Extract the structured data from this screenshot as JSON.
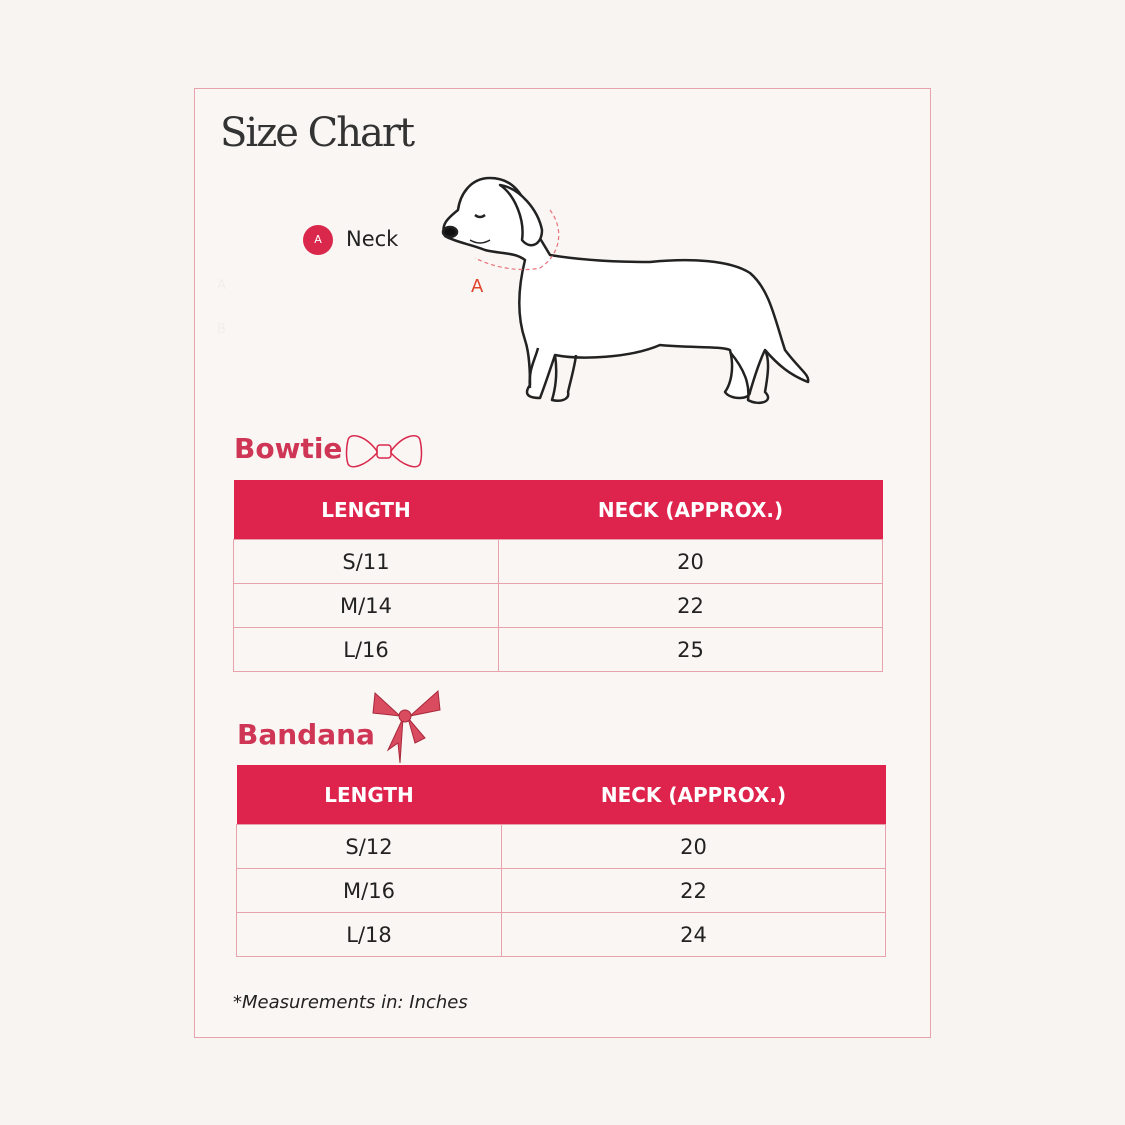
{
  "header": {
    "title": "Size Chart"
  },
  "legend": {
    "badge": "A",
    "label": "Neck"
  },
  "figure": {
    "marker": "A",
    "faint_labels": [
      "A",
      "B"
    ]
  },
  "sections": [
    {
      "title": "Bowtie",
      "table": {
        "columns": [
          "LENGTH",
          "NECK (APPROX.)"
        ],
        "rows": [
          [
            "S/11",
            20
          ],
          [
            "M/14",
            22
          ],
          [
            "L/16",
            25
          ]
        ]
      }
    },
    {
      "title": "Bandana",
      "table": {
        "columns": [
          "LENGTH",
          "NECK (APPROX.)"
        ],
        "rows": [
          [
            "S/12",
            20
          ],
          [
            "M/16",
            22
          ],
          [
            "L/18",
            24
          ]
        ]
      }
    }
  ],
  "footnote": "*Measurements in: Inches"
}
